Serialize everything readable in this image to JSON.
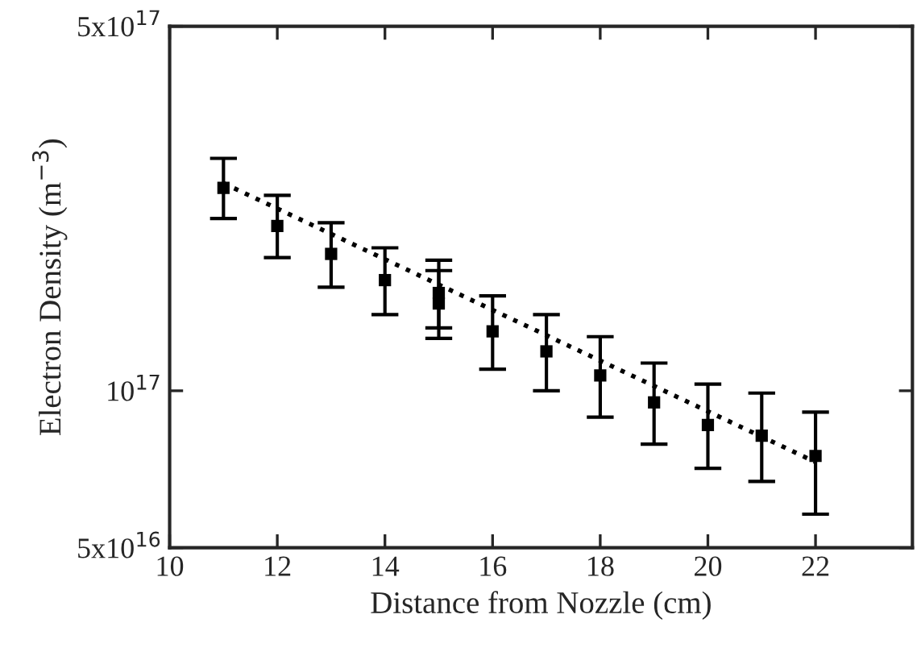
{
  "chart_data": {
    "type": "scatter",
    "xlabel": "Distance from Nozzle (cm)",
    "ylabel": "Electron Density (m$^{−3}$)",
    "log": "y",
    "xlim": [
      10,
      23.8
    ],
    "xticks": [
      10,
      12,
      14,
      16,
      18,
      20,
      22
    ],
    "ylim": [
      5e+16,
      5e+17
    ],
    "yticks": [
      {
        "value": 5e+16,
        "label": "5x10$^{16}$"
      },
      {
        "value": 1e+17,
        "label": "10$^{17}$"
      },
      {
        "value": 5e+17,
        "label": "5x10$^{17}$"
      }
    ],
    "grid": false,
    "legend": false,
    "series": [
      {
        "color": "#000000",
        "marker": "square",
        "x": [
          11,
          12,
          13,
          14,
          15,
          15,
          16,
          17,
          18,
          19,
          20,
          21,
          22
        ],
        "values": [
          2.45e+17,
          2.07e+17,
          1.83e+17,
          1.63e+17,
          1.54e+17,
          1.47e+17,
          1.3e+17,
          1.19e+17,
          1.07e+17,
          9.5e+16,
          8.6e+16,
          8.2e+16,
          7.5e+16
        ],
        "errors": [
          [
            2.14e+17,
            2.79e+17
          ],
          [
            1.8e+17,
            2.37e+17
          ],
          [
            1.58e+17,
            2.1e+17
          ],
          [
            1.4e+17,
            1.88e+17
          ],
          [
            1.32e+17,
            1.78e+17
          ],
          [
            1.26e+17,
            1.7e+17
          ],
          [
            1.1e+17,
            1.52e+17
          ],
          [
            1e+17,
            1.4e+17
          ],
          [
            8.9e+16,
            1.27e+17
          ],
          [
            7.9e+16,
            1.13e+17
          ],
          [
            7.1e+16,
            1.03e+17
          ],
          [
            6.7e+16,
            9.9e+16
          ],
          [
            5.8e+16,
            9.1e+16
          ]
        ]
      },
      {
        "type": "line",
        "color": "#000000",
        "marker": "none",
        "line_style": "dotted",
        "x": [
          11,
          22
        ],
        "values": [
          2.5e+17,
          7.3e+16
        ]
      }
    ]
  }
}
